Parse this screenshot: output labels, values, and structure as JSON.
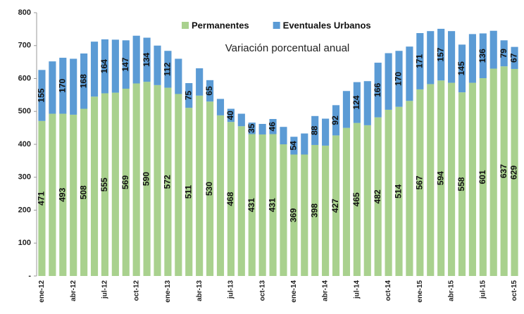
{
  "chart_data": {
    "type": "stacked_bar",
    "annotation": "Variación porcentual anual",
    "categories": [
      "ene-12",
      null,
      null,
      "abr-12",
      null,
      null,
      "jul-12",
      null,
      null,
      "oct-12",
      null,
      null,
      "ene-13",
      null,
      null,
      "abr-13",
      null,
      null,
      "jul-13",
      null,
      null,
      "oct-13",
      null,
      null,
      "ene-14",
      null,
      null,
      "abr-14",
      null,
      null,
      "jul-14",
      null,
      null,
      "oct-14",
      null,
      null,
      "ene-15",
      null,
      null,
      "abr-15",
      null,
      null,
      "jul-15",
      null,
      null,
      "oct-15"
    ],
    "series": [
      {
        "name": "Permanentes",
        "color": "#a9d18e",
        "values": [
          471,
          493,
          493,
          490,
          508,
          545,
          555,
          557,
          569,
          585,
          590,
          580,
          572,
          553,
          511,
          548,
          530,
          488,
          468,
          455,
          431,
          430,
          431,
          400,
          369,
          369,
          398,
          396,
          427,
          450,
          465,
          458,
          482,
          505,
          514,
          532,
          567,
          583,
          594,
          587,
          558,
          587,
          601,
          630,
          637,
          629
        ],
        "value_labels": [
          "471",
          null,
          "493",
          null,
          "508",
          null,
          "555",
          null,
          "569",
          null,
          "590",
          null,
          "572",
          null,
          "511",
          null,
          "530",
          null,
          "468",
          null,
          "431",
          null,
          "431",
          null,
          "369",
          null,
          "398",
          null,
          "427",
          null,
          "465",
          null,
          "482",
          null,
          "514",
          null,
          "567",
          null,
          "594",
          null,
          "558",
          null,
          "601",
          null,
          "637",
          "629"
        ]
      },
      {
        "name": "Eventuales Urbanos",
        "color": "#5b9bd5",
        "values": [
          155,
          159,
          170,
          170,
          168,
          167,
          164,
          161,
          147,
          145,
          134,
          120,
          112,
          107,
          75,
          83,
          65,
          50,
          40,
          38,
          35,
          32,
          46,
          53,
          54,
          64,
          88,
          82,
          92,
          112,
          124,
          134,
          166,
          172,
          170,
          165,
          171,
          161,
          157,
          157,
          145,
          148,
          136,
          115,
          79,
          67
        ],
        "value_labels": [
          "155",
          null,
          "170",
          null,
          "168",
          null,
          "164",
          null,
          "147",
          null,
          "134",
          null,
          "112",
          null,
          "75",
          null,
          "65",
          null,
          "40",
          null,
          "35",
          null,
          "46",
          null,
          "54",
          null,
          "88",
          null,
          "92",
          null,
          "124",
          null,
          "166",
          null,
          "170",
          null,
          "171",
          null,
          "157",
          null,
          "145",
          null,
          "136",
          null,
          "79",
          "67"
        ]
      }
    ],
    "ylim": [
      0,
      800
    ],
    "yticks": [
      {
        "value": 0,
        "label": "-"
      },
      100,
      200,
      300,
      400,
      500,
      600,
      700,
      800
    ]
  }
}
